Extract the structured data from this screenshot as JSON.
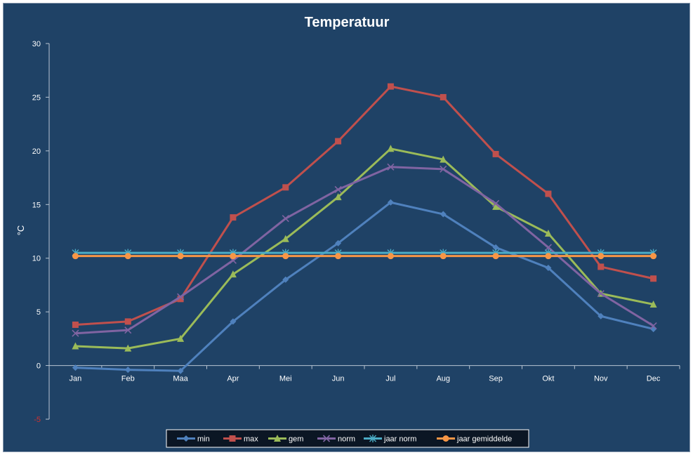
{
  "chart_data": {
    "type": "line",
    "title": "Temperatuur",
    "xlabel": "",
    "ylabel": "°C",
    "ylim": [
      -5,
      30
    ],
    "yticks": [
      "-5",
      "0",
      "5",
      "10",
      "15",
      "20",
      "25",
      "30"
    ],
    "grid": false,
    "legend_position": "bottom",
    "categories": [
      "Jan",
      "Feb",
      "Maa",
      "Apr",
      "Mei",
      "Jun",
      "Jul",
      "Aug",
      "Sep",
      "Okt",
      "Nov",
      "Dec"
    ],
    "series": [
      {
        "name": "min",
        "color": "#4f81bd",
        "marker": "diamond",
        "values": [
          -0.2,
          -0.4,
          -0.5,
          4.1,
          8.0,
          11.4,
          15.2,
          14.1,
          11.0,
          9.1,
          4.6,
          3.4
        ]
      },
      {
        "name": "max",
        "color": "#c0504d",
        "marker": "square",
        "values": [
          3.8,
          4.1,
          6.2,
          13.8,
          16.6,
          20.9,
          26.0,
          25.0,
          19.7,
          16.0,
          9.2,
          8.1
        ]
      },
      {
        "name": "gem",
        "color": "#9bbb59",
        "marker": "triangle",
        "values": [
          1.8,
          1.6,
          2.5,
          8.5,
          11.8,
          15.7,
          20.2,
          19.2,
          14.8,
          12.3,
          6.7,
          5.7
        ]
      },
      {
        "name": "norm",
        "color": "#8064a2",
        "marker": "x",
        "values": [
          3.0,
          3.3,
          6.4,
          9.8,
          13.7,
          16.4,
          18.5,
          18.3,
          15.1,
          11.0,
          6.7,
          3.7
        ]
      },
      {
        "name": "jaar norm",
        "color": "#4bacc6",
        "marker": "star",
        "values": [
          10.5,
          10.5,
          10.5,
          10.5,
          10.5,
          10.5,
          10.5,
          10.5,
          10.5,
          10.5,
          10.5,
          10.5
        ]
      },
      {
        "name": "jaar gemiddelde",
        "color": "#f79646",
        "marker": "circle",
        "values": [
          10.2,
          10.2,
          10.2,
          10.2,
          10.2,
          10.2,
          10.2,
          10.2,
          10.2,
          10.2,
          10.2,
          10.2
        ]
      }
    ]
  }
}
